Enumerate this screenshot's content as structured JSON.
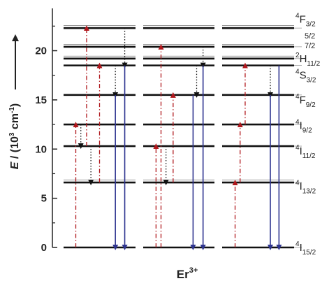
{
  "figure": {
    "y_axis": {
      "label_italic": "E",
      "label_rest": " / (10",
      "label_exp": "3",
      "label_unit": " cm",
      "label_unit_exp": "-1",
      "label_close": ")",
      "range": [
        0,
        24.3
      ],
      "major_ticks": [
        0,
        5,
        10,
        15,
        20
      ],
      "minor_ticks": [
        2.5,
        7.5,
        12.5,
        17.5,
        22.5
      ],
      "tick_labels": [
        "0",
        "5",
        "10",
        "15",
        "20"
      ]
    },
    "x_label": {
      "base": "Er",
      "sup": "3+"
    },
    "levels": [
      {
        "energy": 22.3,
        "thin_above": true
      },
      {
        "energy": 20.4,
        "thin_above": true
      },
      {
        "energy": 19.2,
        "thin_above": true
      },
      {
        "energy": 18.5
      },
      {
        "energy": 15.5
      },
      {
        "energy": 12.5
      },
      {
        "energy": 10.3
      },
      {
        "energy": 6.6,
        "thin_above": true
      },
      {
        "energy": 0
      }
    ],
    "term_labels": [
      {
        "pre": "4",
        "main": "F",
        "sub": "3/2",
        "energy": 23.2
      },
      {
        "pre": "",
        "main": "",
        "sub": "5/2",
        "energy": 21.6,
        "small": true
      },
      {
        "pre": "",
        "main": "",
        "sub": "7/2",
        "energy": 20.6,
        "small": true
      },
      {
        "pre": "2",
        "main": "H",
        "sub": "11/2",
        "energy": 19.2
      },
      {
        "pre": "4",
        "main": "S",
        "sub": "3/2",
        "energy": 17.5
      },
      {
        "pre": "4",
        "main": "F",
        "sub": "9/2",
        "energy": 15.0
      },
      {
        "pre": "4",
        "main": "I",
        "sub": "9/2",
        "energy": 12.4
      },
      {
        "pre": "4",
        "main": "I",
        "sub": "11/2",
        "energy": 9.8
      },
      {
        "pre": "4",
        "main": "I",
        "sub": "13/2",
        "energy": 6.2
      },
      {
        "pre": "4",
        "main": "I",
        "sub": "15/2",
        "energy": 0.0
      }
    ],
    "transitions": [
      {
        "panel": 0,
        "type": "excitation",
        "x": 0.17,
        "from": 0,
        "to": 12.5
      },
      {
        "panel": 0,
        "type": "excitation",
        "x": 0.32,
        "from": 10.3,
        "to": 22.3
      },
      {
        "panel": 0,
        "type": "excitation",
        "x": 0.5,
        "from": 6.6,
        "to": 18.5
      },
      {
        "panel": 0,
        "type": "relaxation",
        "x": 0.24,
        "from": 12.5,
        "to": 10.3
      },
      {
        "panel": 0,
        "type": "relaxation",
        "x": 0.38,
        "from": 10.3,
        "to": 6.6
      },
      {
        "panel": 0,
        "type": "relaxation",
        "x": 0.72,
        "from": 18.5,
        "to": 15.5
      },
      {
        "panel": 0,
        "type": "relaxation",
        "x": 0.85,
        "from": 22.3,
        "to": 18.5
      },
      {
        "panel": 0,
        "type": "emission",
        "x": 0.72,
        "from": 15.5,
        "to": 0
      },
      {
        "panel": 0,
        "type": "emission",
        "x": 0.85,
        "from": 18.5,
        "to": 0
      },
      {
        "panel": 1,
        "type": "excitation",
        "x": 0.18,
        "from": 0,
        "to": 10.3
      },
      {
        "panel": 1,
        "type": "excitation",
        "x": 0.25,
        "from": 0,
        "to": 20.4
      },
      {
        "panel": 1,
        "type": "excitation",
        "x": 0.42,
        "from": 6.6,
        "to": 15.5
      },
      {
        "panel": 1,
        "type": "relaxation",
        "x": 0.32,
        "from": 10.3,
        "to": 6.6
      },
      {
        "panel": 1,
        "type": "relaxation",
        "x": 0.75,
        "from": 18.5,
        "to": 15.5
      },
      {
        "panel": 1,
        "type": "relaxation",
        "x": 0.84,
        "from": 20.4,
        "to": 18.5
      },
      {
        "panel": 1,
        "type": "emission",
        "x": 0.7,
        "from": 15.5,
        "to": 0
      },
      {
        "panel": 1,
        "type": "emission",
        "x": 0.84,
        "from": 18.5,
        "to": 0
      },
      {
        "panel": 2,
        "type": "excitation",
        "x": 0.18,
        "from": 0,
        "to": 6.6
      },
      {
        "panel": 2,
        "type": "excitation",
        "x": 0.25,
        "from": 6.6,
        "to": 12.5
      },
      {
        "panel": 2,
        "type": "excitation",
        "x": 0.32,
        "from": 12.5,
        "to": 18.5
      },
      {
        "panel": 2,
        "type": "relaxation",
        "x": 0.67,
        "from": 18.5,
        "to": 15.5
      },
      {
        "panel": 2,
        "type": "emission",
        "x": 0.67,
        "from": 15.5,
        "to": 0
      },
      {
        "panel": 2,
        "type": "emission",
        "x": 0.79,
        "from": 18.5,
        "to": 0
      }
    ],
    "colors": {
      "excitation": "#b0181d",
      "relaxation": "#111111",
      "emission": "#2f3590",
      "level": "#111111",
      "axis": "#222222"
    }
  }
}
